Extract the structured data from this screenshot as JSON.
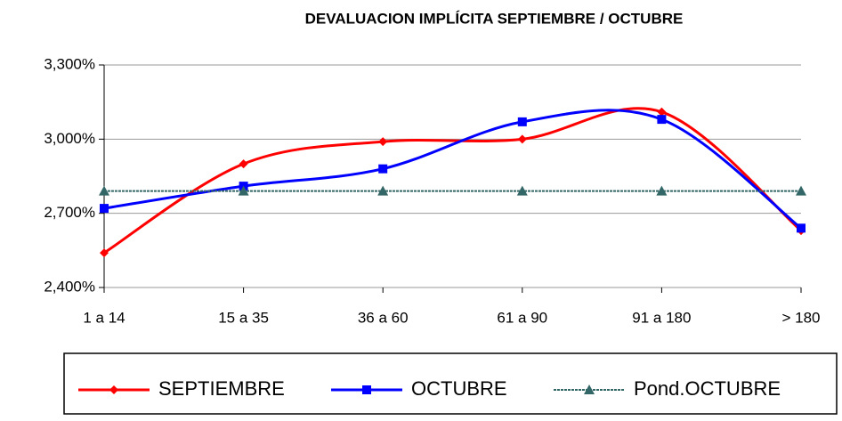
{
  "chart_data": {
    "type": "line",
    "title": "DEVALUACION IMPLÍCITA SEPTIEMBRE / OCTUBRE",
    "categories": [
      "1 a 14",
      "15 a 35",
      "36 a 60",
      "61 a 90",
      "91 a 180",
      "> 180"
    ],
    "series": [
      {
        "name": "SEPTIEMBRE",
        "color": "#ff0000",
        "marker": "diamond",
        "values": [
          2.54,
          2.9,
          2.99,
          3.0,
          3.11,
          2.63
        ]
      },
      {
        "name": "OCTUBRE",
        "color": "#0000ff",
        "marker": "square",
        "values": [
          2.72,
          2.81,
          2.88,
          3.07,
          3.08,
          2.64
        ]
      },
      {
        "name": "Pond.OCTUBRE",
        "color": "#336666",
        "marker": "triangle",
        "values": [
          2.79,
          2.79,
          2.79,
          2.79,
          2.79,
          2.79
        ]
      }
    ],
    "ylim": [
      2.4,
      3.3
    ],
    "yticks": [
      {
        "value": 2.4,
        "label": "2,400%"
      },
      {
        "value": 2.7,
        "label": "2,700%"
      },
      {
        "value": 3.0,
        "label": "3,000%"
      },
      {
        "value": 3.3,
        "label": "3,300%"
      }
    ],
    "grid": true,
    "legend": "bottom"
  }
}
